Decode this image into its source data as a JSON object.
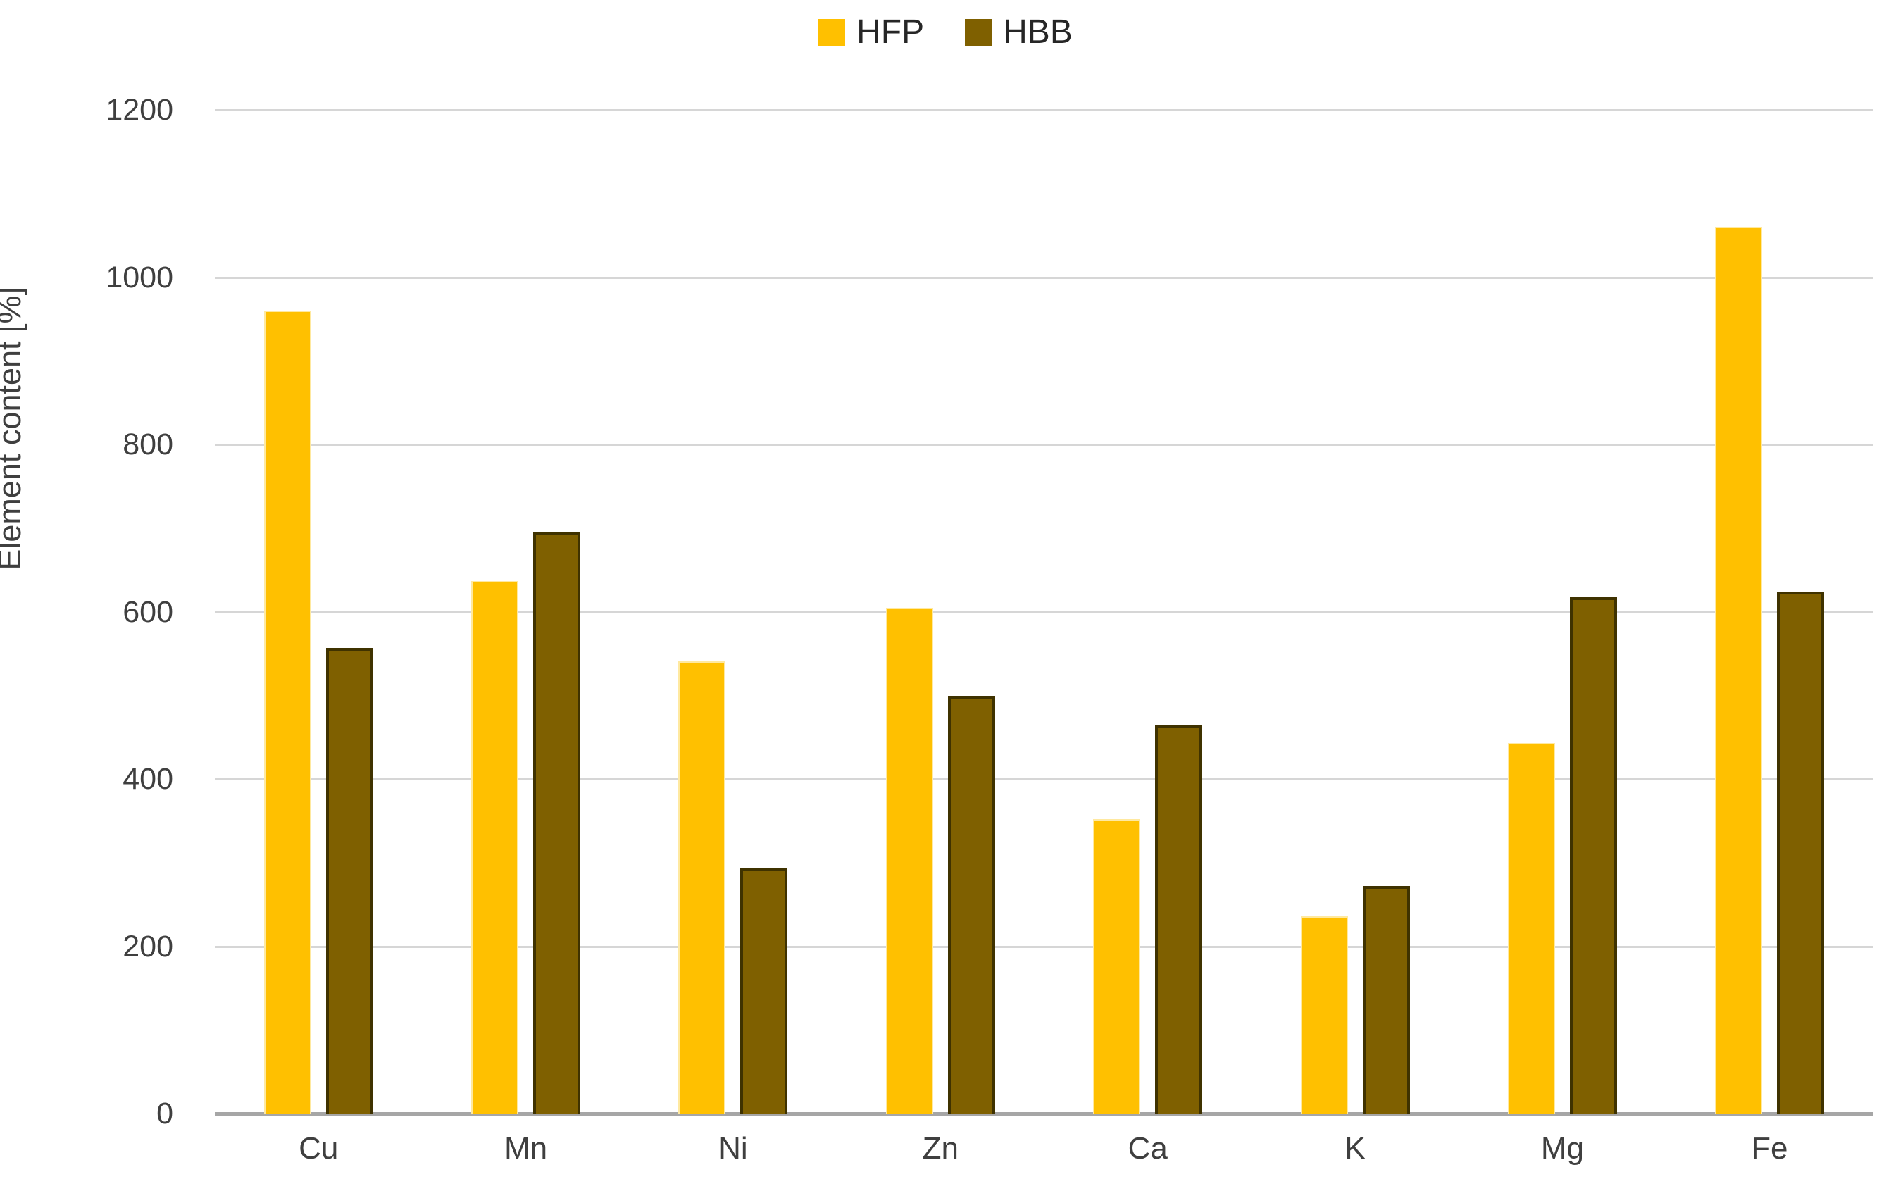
{
  "chart_data": {
    "type": "bar",
    "title": "",
    "ylabel": "Element content [%]",
    "categories": [
      "Cu",
      "Mn",
      "Ni",
      "Zn",
      "Ca",
      "K",
      "Mg",
      "Fe"
    ],
    "series": [
      {
        "name": "HFP",
        "color": "#FFC000",
        "values": [
          960,
          637,
          541,
          605,
          352,
          236,
          443,
          1060
        ]
      },
      {
        "name": "HBB",
        "color": "#7F6000",
        "values": [
          557,
          696,
          294,
          499,
          464,
          272,
          617,
          624
        ]
      }
    ],
    "yticks": [
      0,
      200,
      400,
      600,
      800,
      1000,
      1200
    ],
    "ylim": [
      0,
      1200
    ],
    "grid": true,
    "legend_position": "top-center",
    "colors": {
      "gridline": "#d6d6d6",
      "axis_baseline": "#a6a6a6",
      "tick_label": "#3f3f3f",
      "hfp_bar_edge": "#ffe9a0",
      "hbb_bar_edge": "#3f3200"
    }
  }
}
